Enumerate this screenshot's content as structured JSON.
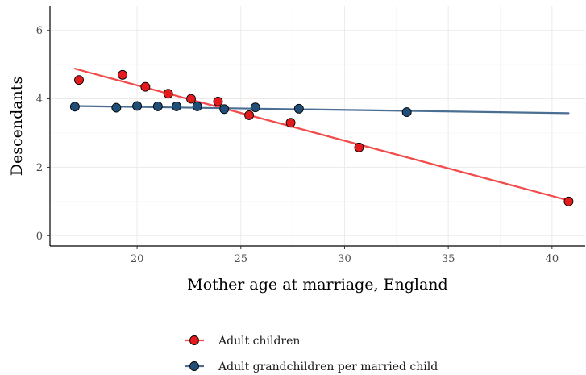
{
  "chart_data": {
    "type": "scatter",
    "xlabel": "Mother age at marriage, England",
    "ylabel": "Descendants",
    "xlim": [
      15.8,
      41.6
    ],
    "ylim": [
      -0.3,
      6.7
    ],
    "x_ticks": [
      20,
      25,
      30,
      35,
      40
    ],
    "y_ticks": [
      0,
      2,
      4,
      6
    ],
    "grid": true,
    "legend_position": "bottom",
    "series": [
      {
        "name": "Adult children",
        "color": "#e41a1c",
        "line_color": "#f24b4b",
        "x": [
          17.2,
          19.3,
          20.4,
          21.5,
          22.6,
          23.9,
          25.4,
          27.4,
          30.7,
          40.8
        ],
        "y": [
          4.55,
          4.7,
          4.35,
          4.15,
          4.0,
          3.92,
          3.52,
          3.3,
          2.58,
          1.0
        ],
        "fit": {
          "x": [
            17.0,
            40.8
          ],
          "y": [
            4.88,
            1.03
          ]
        }
      },
      {
        "name": "Adult grandchildren per married child",
        "color": "#1f4e79",
        "line_color": "#4a6f93",
        "x": [
          17.0,
          19.0,
          20.0,
          21.0,
          21.9,
          22.9,
          24.2,
          25.7,
          27.8,
          33.0
        ],
        "y": [
          3.77,
          3.74,
          3.79,
          3.78,
          3.78,
          3.78,
          3.7,
          3.75,
          3.71,
          3.61
        ],
        "fit": {
          "x": [
            17.0,
            40.8
          ],
          "y": [
            3.79,
            3.58
          ]
        }
      }
    ]
  }
}
